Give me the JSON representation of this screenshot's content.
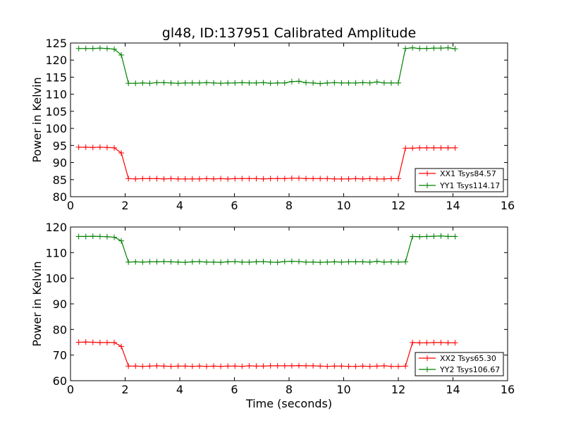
{
  "chart_data": [
    {
      "type": "line",
      "title": "gl48, ID:137951 Calibrated Amplitude",
      "xlabel": "",
      "ylabel": "Power in Kelvin",
      "xlim": [
        0,
        16
      ],
      "ylim": [
        80,
        125
      ],
      "xticks": [
        0,
        2,
        4,
        6,
        8,
        10,
        12,
        14,
        16
      ],
      "yticks": [
        80,
        85,
        90,
        95,
        100,
        105,
        110,
        115,
        120,
        125
      ],
      "legend_position": "lower-right",
      "x": [
        0.3,
        0.56,
        0.82,
        1.08,
        1.34,
        1.6,
        1.86,
        2.12,
        2.38,
        2.64,
        2.9,
        3.16,
        3.42,
        3.68,
        3.94,
        4.2,
        4.46,
        4.72,
        4.98,
        5.24,
        5.5,
        5.76,
        6.02,
        6.28,
        6.54,
        6.8,
        7.06,
        7.32,
        7.58,
        7.84,
        8.1,
        8.36,
        8.62,
        8.88,
        9.14,
        9.4,
        9.66,
        9.92,
        10.18,
        10.44,
        10.7,
        10.96,
        11.22,
        11.48,
        11.74,
        12.0,
        12.26,
        12.52,
        12.78,
        13.04,
        13.3,
        13.56,
        13.82,
        14.08
      ],
      "series": [
        {
          "name": "XX1 Tsys84.57",
          "color": "#ff0000",
          "values": [
            94.5,
            94.5,
            94.4,
            94.5,
            94.4,
            94.3,
            92.8,
            85.3,
            85.2,
            85.3,
            85.3,
            85.3,
            85.2,
            85.3,
            85.2,
            85.2,
            85.2,
            85.2,
            85.3,
            85.2,
            85.3,
            85.2,
            85.3,
            85.3,
            85.3,
            85.3,
            85.2,
            85.3,
            85.3,
            85.3,
            85.4,
            85.4,
            85.3,
            85.3,
            85.3,
            85.3,
            85.2,
            85.2,
            85.2,
            85.3,
            85.2,
            85.3,
            85.2,
            85.2,
            85.3,
            85.3,
            94.2,
            94.2,
            94.3,
            94.3,
            94.3,
            94.3,
            94.3,
            94.3
          ]
        },
        {
          "name": "YY1 Tsys114.17",
          "color": "#008000",
          "values": [
            123.4,
            123.4,
            123.4,
            123.5,
            123.4,
            123.2,
            121.5,
            113.2,
            113.2,
            113.3,
            113.2,
            113.4,
            113.4,
            113.3,
            113.2,
            113.3,
            113.3,
            113.3,
            113.4,
            113.3,
            113.2,
            113.3,
            113.3,
            113.4,
            113.3,
            113.3,
            113.4,
            113.2,
            113.3,
            113.3,
            113.7,
            113.8,
            113.4,
            113.3,
            113.1,
            113.3,
            113.4,
            113.3,
            113.3,
            113.3,
            113.4,
            113.3,
            113.6,
            113.3,
            113.3,
            113.3,
            123.4,
            123.6,
            123.4,
            123.4,
            123.5,
            123.5,
            123.6,
            123.3
          ]
        }
      ]
    },
    {
      "type": "line",
      "title": "",
      "xlabel": "Time (seconds)",
      "ylabel": "Power in Kelvin",
      "xlim": [
        0,
        16
      ],
      "ylim": [
        60,
        120
      ],
      "xticks": [
        0,
        2,
        4,
        6,
        8,
        10,
        12,
        14,
        16
      ],
      "yticks": [
        60,
        70,
        80,
        90,
        100,
        110,
        120
      ],
      "legend_position": "lower-right",
      "x": [
        0.3,
        0.56,
        0.82,
        1.08,
        1.34,
        1.6,
        1.86,
        2.12,
        2.38,
        2.64,
        2.9,
        3.16,
        3.42,
        3.68,
        3.94,
        4.2,
        4.46,
        4.72,
        4.98,
        5.24,
        5.5,
        5.76,
        6.02,
        6.28,
        6.54,
        6.8,
        7.06,
        7.32,
        7.58,
        7.84,
        8.1,
        8.36,
        8.62,
        8.88,
        9.14,
        9.4,
        9.66,
        9.92,
        10.18,
        10.44,
        10.7,
        10.96,
        11.22,
        11.48,
        11.74,
        12.0,
        12.26,
        12.52,
        12.78,
        13.04,
        13.3,
        13.56,
        13.82,
        14.08
      ],
      "series": [
        {
          "name": "XX2 Tsys65.30",
          "color": "#ff0000",
          "values": [
            75.0,
            75.1,
            75.0,
            74.9,
            74.9,
            74.9,
            73.4,
            65.7,
            65.7,
            65.6,
            65.7,
            65.8,
            65.7,
            65.6,
            65.7,
            65.7,
            65.6,
            65.7,
            65.6,
            65.7,
            65.6,
            65.7,
            65.7,
            65.6,
            65.8,
            65.7,
            65.7,
            65.8,
            65.8,
            65.8,
            65.8,
            65.9,
            65.8,
            65.8,
            65.7,
            65.6,
            65.7,
            65.7,
            65.6,
            65.6,
            65.7,
            65.6,
            65.7,
            65.8,
            65.6,
            65.6,
            65.7,
            74.9,
            74.8,
            74.8,
            74.9,
            74.9,
            74.8,
            74.8
          ]
        },
        {
          "name": "YY2 Tsys106.67",
          "color": "#008000",
          "values": [
            116.3,
            116.3,
            116.4,
            116.3,
            116.2,
            116.0,
            114.6,
            106.3,
            106.4,
            106.3,
            106.4,
            106.4,
            106.5,
            106.4,
            106.3,
            106.2,
            106.4,
            106.5,
            106.3,
            106.3,
            106.2,
            106.4,
            106.5,
            106.3,
            106.3,
            106.4,
            106.5,
            106.3,
            106.2,
            106.5,
            106.6,
            106.5,
            106.3,
            106.3,
            106.2,
            106.3,
            106.4,
            106.3,
            106.4,
            106.4,
            106.4,
            106.3,
            106.6,
            106.3,
            106.4,
            106.3,
            106.4,
            116.3,
            116.2,
            116.3,
            116.4,
            116.5,
            116.3,
            116.3
          ]
        }
      ]
    }
  ]
}
